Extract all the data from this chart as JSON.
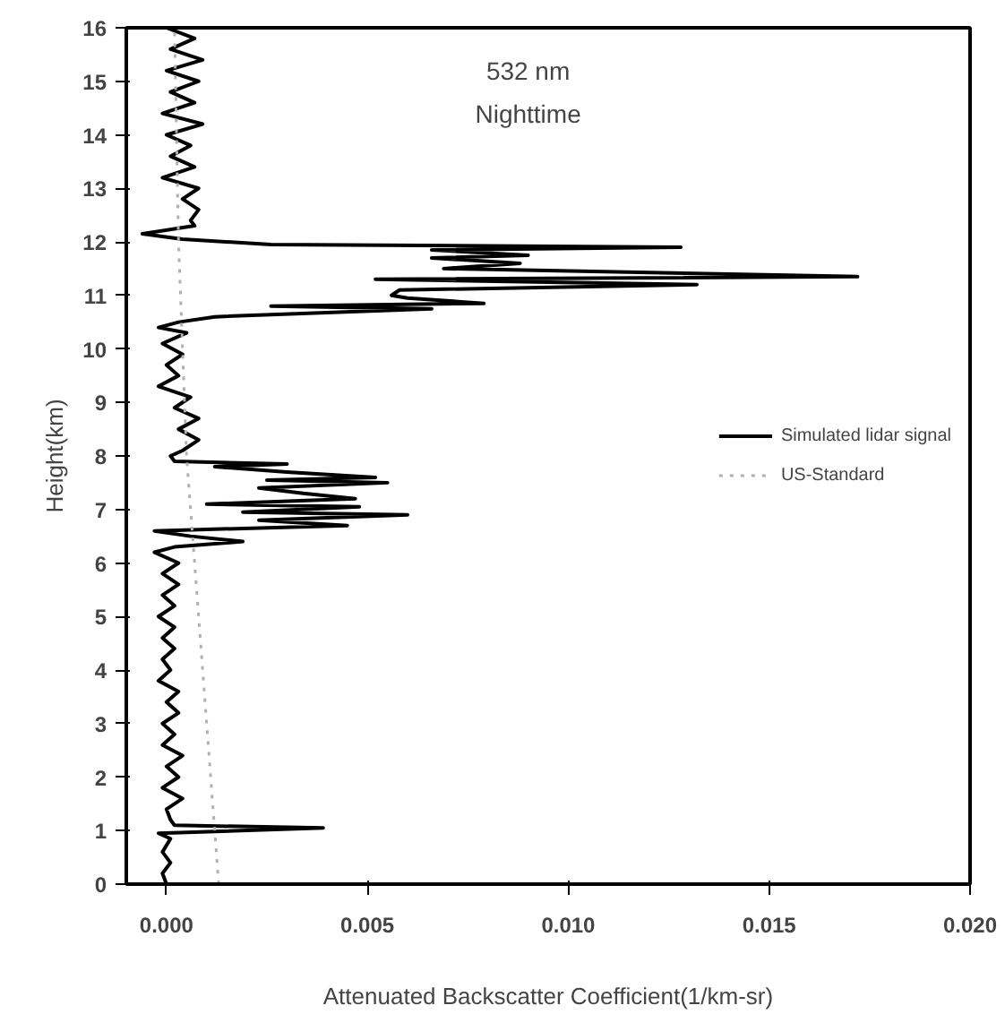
{
  "chart_data": {
    "type": "line",
    "xlabel": "Attenuated Backscatter Coefficient(1/km-sr)",
    "ylabel": "Height(km)",
    "annotations": [
      "532 nm",
      "Nighttime"
    ],
    "xlim": [
      -0.001,
      0.02
    ],
    "ylim": [
      0,
      16
    ],
    "xticks": [
      {
        "value": 0,
        "label": "0.000"
      },
      {
        "value": 0.005,
        "label": "0.005"
      },
      {
        "value": 0.01,
        "label": "0.010"
      },
      {
        "value": 0.015,
        "label": "0.015"
      },
      {
        "value": 0.02,
        "label": "0.020"
      }
    ],
    "yticks": [
      0,
      1,
      2,
      3,
      4,
      5,
      6,
      7,
      8,
      9,
      10,
      11,
      12,
      13,
      14,
      15,
      16
    ],
    "grid": false,
    "legend": "right",
    "marker": "none",
    "series": [
      {
        "name": "Simulated lidar signal",
        "color": "#000000",
        "line_style": "solid",
        "x": [
          0.0,
          0.0007,
          0.0001,
          0.0009,
          0.0,
          0.0008,
          0.0001,
          0.0007,
          -0.0001,
          0.0009,
          0.0,
          0.0006,
          0.0001,
          0.0007,
          -0.0001,
          0.0008,
          0.0004,
          0.0008,
          0.0006,
          0.0007,
          -0.0006,
          0.0004,
          0.0026,
          0.0128,
          0.0066,
          0.009,
          0.0066,
          0.0088,
          0.0069,
          0.0172,
          0.0052,
          0.0132,
          0.0058,
          0.0056,
          0.006,
          0.0079,
          0.0026,
          0.0066,
          0.0012,
          0.0003,
          -0.0002,
          0.0005,
          -0.0001,
          0.0004,
          0.0,
          0.0003,
          -0.0002,
          0.0006,
          0.0002,
          0.0008,
          0.0003,
          0.0008,
          0.0004,
          0.0001,
          0.0002,
          0.003,
          0.0012,
          0.003,
          0.0052,
          0.0025,
          0.0055,
          0.0023,
          0.0034,
          0.0047,
          0.001,
          0.0048,
          0.0019,
          0.006,
          0.0023,
          0.0045,
          -0.0003,
          0.0006,
          0.0019,
          0.0002,
          -0.0003,
          0.0003,
          -0.0001,
          0.0003,
          -0.0001,
          0.0002,
          -0.0002,
          0.0002,
          -0.0001,
          0.0002,
          -0.0001,
          0.0001,
          -0.0002,
          0.0003,
          0.0,
          0.0003,
          -0.0001,
          0.0002,
          -0.0001,
          0.0004,
          0.0,
          0.0003,
          -0.0001,
          0.0004,
          0.0,
          0.0001,
          0.0002,
          0.0039,
          -0.0002,
          0.0001,
          -0.0001,
          0.0001,
          -0.0001,
          0.0
        ],
        "values": [
          16.0,
          15.8,
          15.6,
          15.4,
          15.2,
          15.0,
          14.8,
          14.6,
          14.4,
          14.2,
          14.0,
          13.8,
          13.6,
          13.4,
          13.2,
          13.0,
          12.8,
          12.6,
          12.4,
          12.3,
          12.15,
          12.05,
          11.95,
          11.9,
          11.85,
          11.75,
          11.7,
          11.6,
          11.5,
          11.35,
          11.3,
          11.2,
          11.1,
          11.0,
          10.95,
          10.85,
          10.8,
          10.75,
          10.6,
          10.5,
          10.4,
          10.3,
          10.1,
          9.9,
          9.7,
          9.5,
          9.3,
          9.1,
          8.9,
          8.7,
          8.5,
          8.3,
          8.1,
          8.0,
          7.9,
          7.85,
          7.8,
          7.7,
          7.6,
          7.55,
          7.5,
          7.4,
          7.3,
          7.2,
          7.1,
          7.05,
          6.95,
          6.9,
          6.8,
          6.7,
          6.6,
          6.5,
          6.4,
          6.3,
          6.2,
          6.0,
          5.8,
          5.6,
          5.4,
          5.2,
          5.0,
          4.8,
          4.6,
          4.4,
          4.2,
          4.0,
          3.8,
          3.6,
          3.4,
          3.2,
          3.0,
          2.8,
          2.6,
          2.4,
          2.2,
          2.0,
          1.8,
          1.6,
          1.4,
          1.2,
          1.1,
          1.05,
          0.95,
          0.85,
          0.6,
          0.4,
          0.2,
          0.0
        ]
      },
      {
        "name": "US-Standard",
        "color": "#b0b0b0",
        "line_style": "dotted",
        "x": [
          0.0013,
          0.0011,
          0.0009,
          0.0007,
          0.0005,
          0.0004,
          0.0003,
          0.0002
        ],
        "values": [
          0,
          2,
          4,
          6,
          8,
          10,
          12,
          16
        ]
      }
    ]
  }
}
